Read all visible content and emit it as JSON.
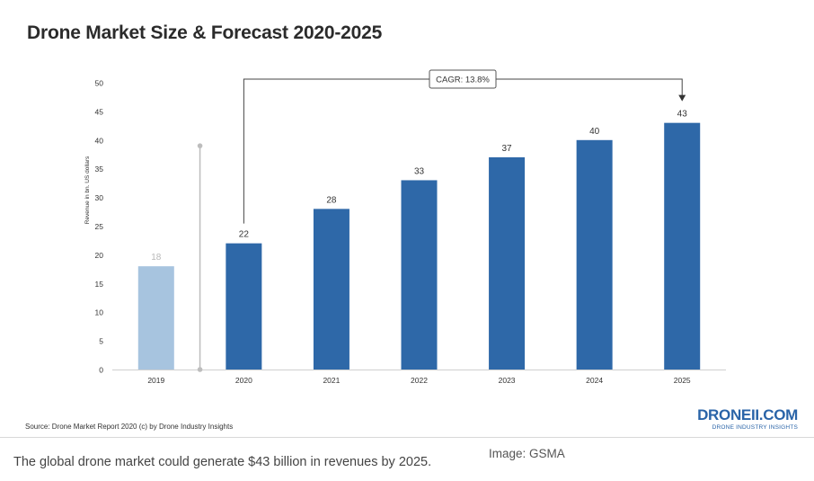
{
  "chart_data": {
    "type": "bar",
    "title": "Drone Market Size & Forecast 2020-2025",
    "ylabel": "Revenue in bn. US dollars",
    "xlabel": "",
    "ylim": [
      0,
      50
    ],
    "yticks": [
      0,
      5,
      10,
      15,
      20,
      25,
      30,
      35,
      40,
      45,
      50
    ],
    "categories": [
      "2019",
      "2020",
      "2021",
      "2022",
      "2023",
      "2024",
      "2025"
    ],
    "values": [
      18,
      22,
      28,
      33,
      37,
      40,
      43
    ],
    "data_labels": [
      "18",
      "22",
      "28",
      "33",
      "37",
      "40",
      "43"
    ],
    "bar_colors": [
      "#a7c4df",
      "#2e68a8",
      "#2e68a8",
      "#2e68a8",
      "#2e68a8",
      "#2e68a8",
      "#2e68a8"
    ],
    "annotation": {
      "text": "CAGR: 13.8%",
      "from_category": "2020",
      "to_category": "2025"
    },
    "divider_between": [
      "2019",
      "2020"
    ]
  },
  "source": "Source: Drone Market Report 2020 (c) by Drone Industry Insights",
  "brand": {
    "logo": "DRONEII.COM",
    "tagline": "DRONE INDUSTRY INSIGHTS"
  },
  "caption": "The global drone market could generate $43 billion in revenues by 2025.",
  "credit": "Image: GSMA"
}
